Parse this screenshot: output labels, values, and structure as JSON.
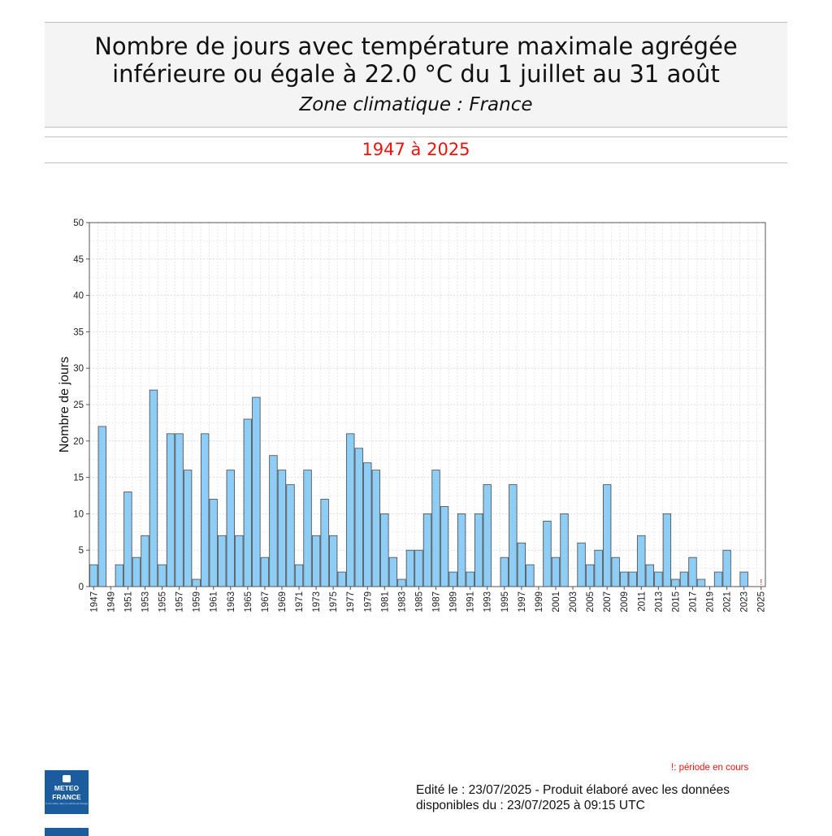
{
  "header": {
    "title_line1": "Nombre de jours avec température maximale agrégée",
    "title_line2": "inférieure ou égale à  22.0 °C du 1 juillet au 31 août",
    "subtitle": "Zone climatique : France",
    "period": "1947 à 2025"
  },
  "chart_data": {
    "type": "bar",
    "title": "Nombre de jours avec température maximale agrégée inférieure ou égale à 22.0 °C du 1 juillet au 31 août",
    "xlabel": "",
    "ylabel": "Nombre de jours",
    "ylim": [
      0,
      50
    ],
    "yticks": [
      0,
      5,
      10,
      15,
      20,
      25,
      30,
      35,
      40,
      45,
      50
    ],
    "grid": true,
    "categories": [
      1947,
      1948,
      1949,
      1950,
      1951,
      1952,
      1953,
      1954,
      1955,
      1956,
      1957,
      1958,
      1959,
      1960,
      1961,
      1962,
      1963,
      1964,
      1965,
      1966,
      1967,
      1968,
      1969,
      1970,
      1971,
      1972,
      1973,
      1974,
      1975,
      1976,
      1977,
      1978,
      1979,
      1980,
      1981,
      1982,
      1983,
      1984,
      1985,
      1986,
      1987,
      1988,
      1989,
      1990,
      1991,
      1992,
      1993,
      1994,
      1995,
      1996,
      1997,
      1998,
      1999,
      2000,
      2001,
      2002,
      2003,
      2004,
      2005,
      2006,
      2007,
      2008,
      2009,
      2010,
      2011,
      2012,
      2013,
      2014,
      2015,
      2016,
      2017,
      2018,
      2019,
      2020,
      2021,
      2022,
      2023,
      2024,
      2025
    ],
    "values": [
      3,
      22,
      0,
      3,
      13,
      4,
      7,
      27,
      3,
      21,
      21,
      16,
      1,
      21,
      12,
      7,
      16,
      7,
      23,
      26,
      4,
      18,
      16,
      14,
      3,
      16,
      7,
      12,
      7,
      2,
      21,
      19,
      17,
      16,
      10,
      4,
      1,
      5,
      5,
      10,
      16,
      11,
      2,
      10,
      2,
      10,
      14,
      0,
      4,
      14,
      6,
      3,
      0,
      9,
      4,
      10,
      0,
      6,
      3,
      5,
      14,
      4,
      2,
      2,
      7,
      3,
      2,
      10,
      1,
      2,
      4,
      1,
      0,
      2,
      5,
      0,
      2,
      0,
      0
    ],
    "tick_labels": [
      "1947",
      "1949",
      "1951",
      "1953",
      "1955",
      "1957",
      "1959",
      "1961",
      "1963",
      "1965",
      "1967",
      "1969",
      "1971",
      "1973",
      "1975",
      "1977",
      "1979",
      "1981",
      "1983",
      "1985",
      "1987",
      "1989",
      "1991",
      "1993",
      "1995",
      "1997",
      "1999",
      "2001",
      "2003",
      "2005",
      "2007",
      "2009",
      "2011",
      "2013",
      "2015",
      "2017",
      "2019",
      "2021",
      "2023",
      "2025"
    ],
    "in_progress_marker": "!",
    "bar_color": "#8dcdf6",
    "bar_edge": "#4a4a4a"
  },
  "footer": {
    "legend_note": "!: période en cours",
    "edit_line1": "Edité le : 23/07/2025 - Produit élaboré avec les données",
    "edit_line2": "disponibles du : 23/07/2025 à 09:15 UTC",
    "logo_line1": "METEO",
    "logo_line2": "FRANCE",
    "logo_tagline": "À vos côtés, dans un climat qui change"
  }
}
